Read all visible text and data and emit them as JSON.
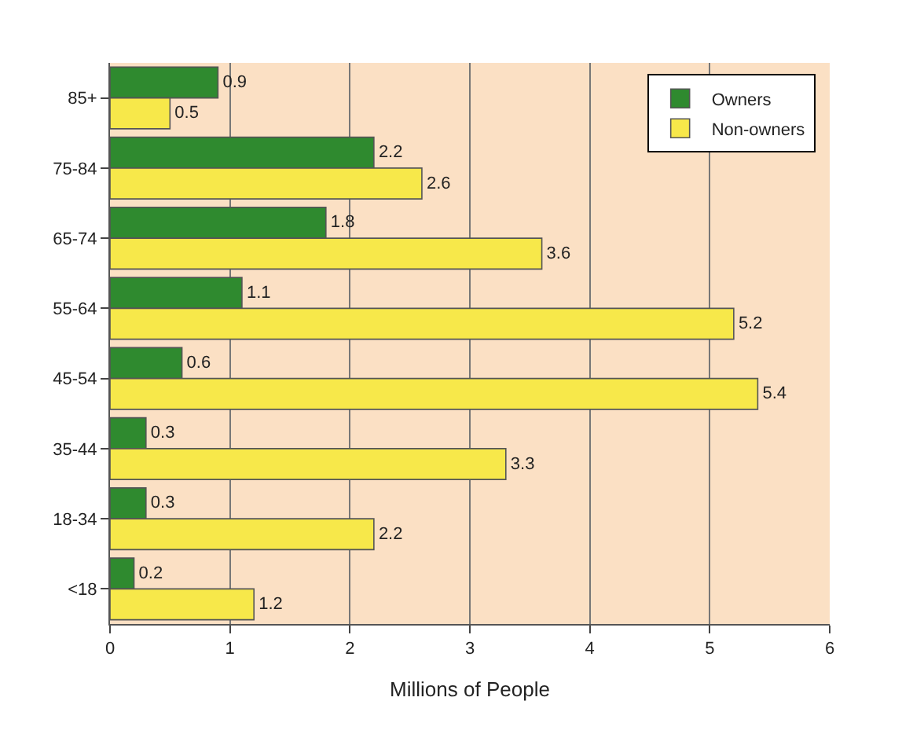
{
  "chart_data": {
    "type": "bar",
    "orientation": "horizontal",
    "xlabel": "Millions of People",
    "categories": [
      "85+",
      "75-84",
      "65-74",
      "55-64",
      "45-54",
      "35-44",
      "18-34",
      "<18"
    ],
    "series": [
      {
        "name": "Owners",
        "color": "#2f8a2f",
        "values": [
          0.9,
          2.2,
          1.8,
          1.1,
          0.6,
          0.3,
          0.3,
          0.2
        ]
      },
      {
        "name": "Non-owners",
        "color": "#f7e84a",
        "values": [
          0.5,
          2.6,
          3.6,
          5.2,
          5.4,
          3.3,
          2.2,
          1.2
        ]
      }
    ],
    "xlim": [
      0,
      6
    ],
    "xticks": [
      0,
      1,
      2,
      3,
      4,
      5,
      6
    ],
    "grid": "x",
    "legend": "top right",
    "data_labels": true
  }
}
